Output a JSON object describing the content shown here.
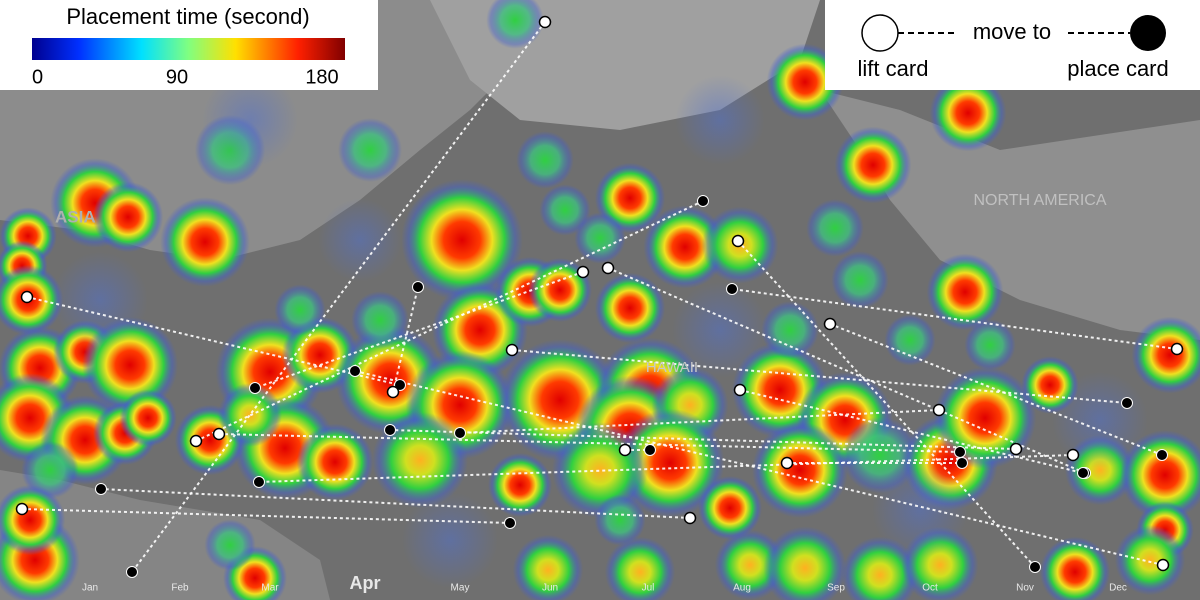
{
  "legend": {
    "title": "Placement time (second)",
    "lim": [
      0,
      180
    ],
    "ticks": [
      0,
      90,
      180
    ]
  },
  "key": {
    "lift": "lift card",
    "move": "move to",
    "place": "place card"
  },
  "map_labels": {
    "asia": "ASIA",
    "north_america": "NORTH AMERICA",
    "hawaii": "HAWAII"
  },
  "months": [
    "Jan",
    "Feb",
    "Mar",
    "Apr",
    "May",
    "Jun",
    "Jul",
    "Aug",
    "Sep",
    "Oct",
    "Nov",
    "Dec"
  ]
}
